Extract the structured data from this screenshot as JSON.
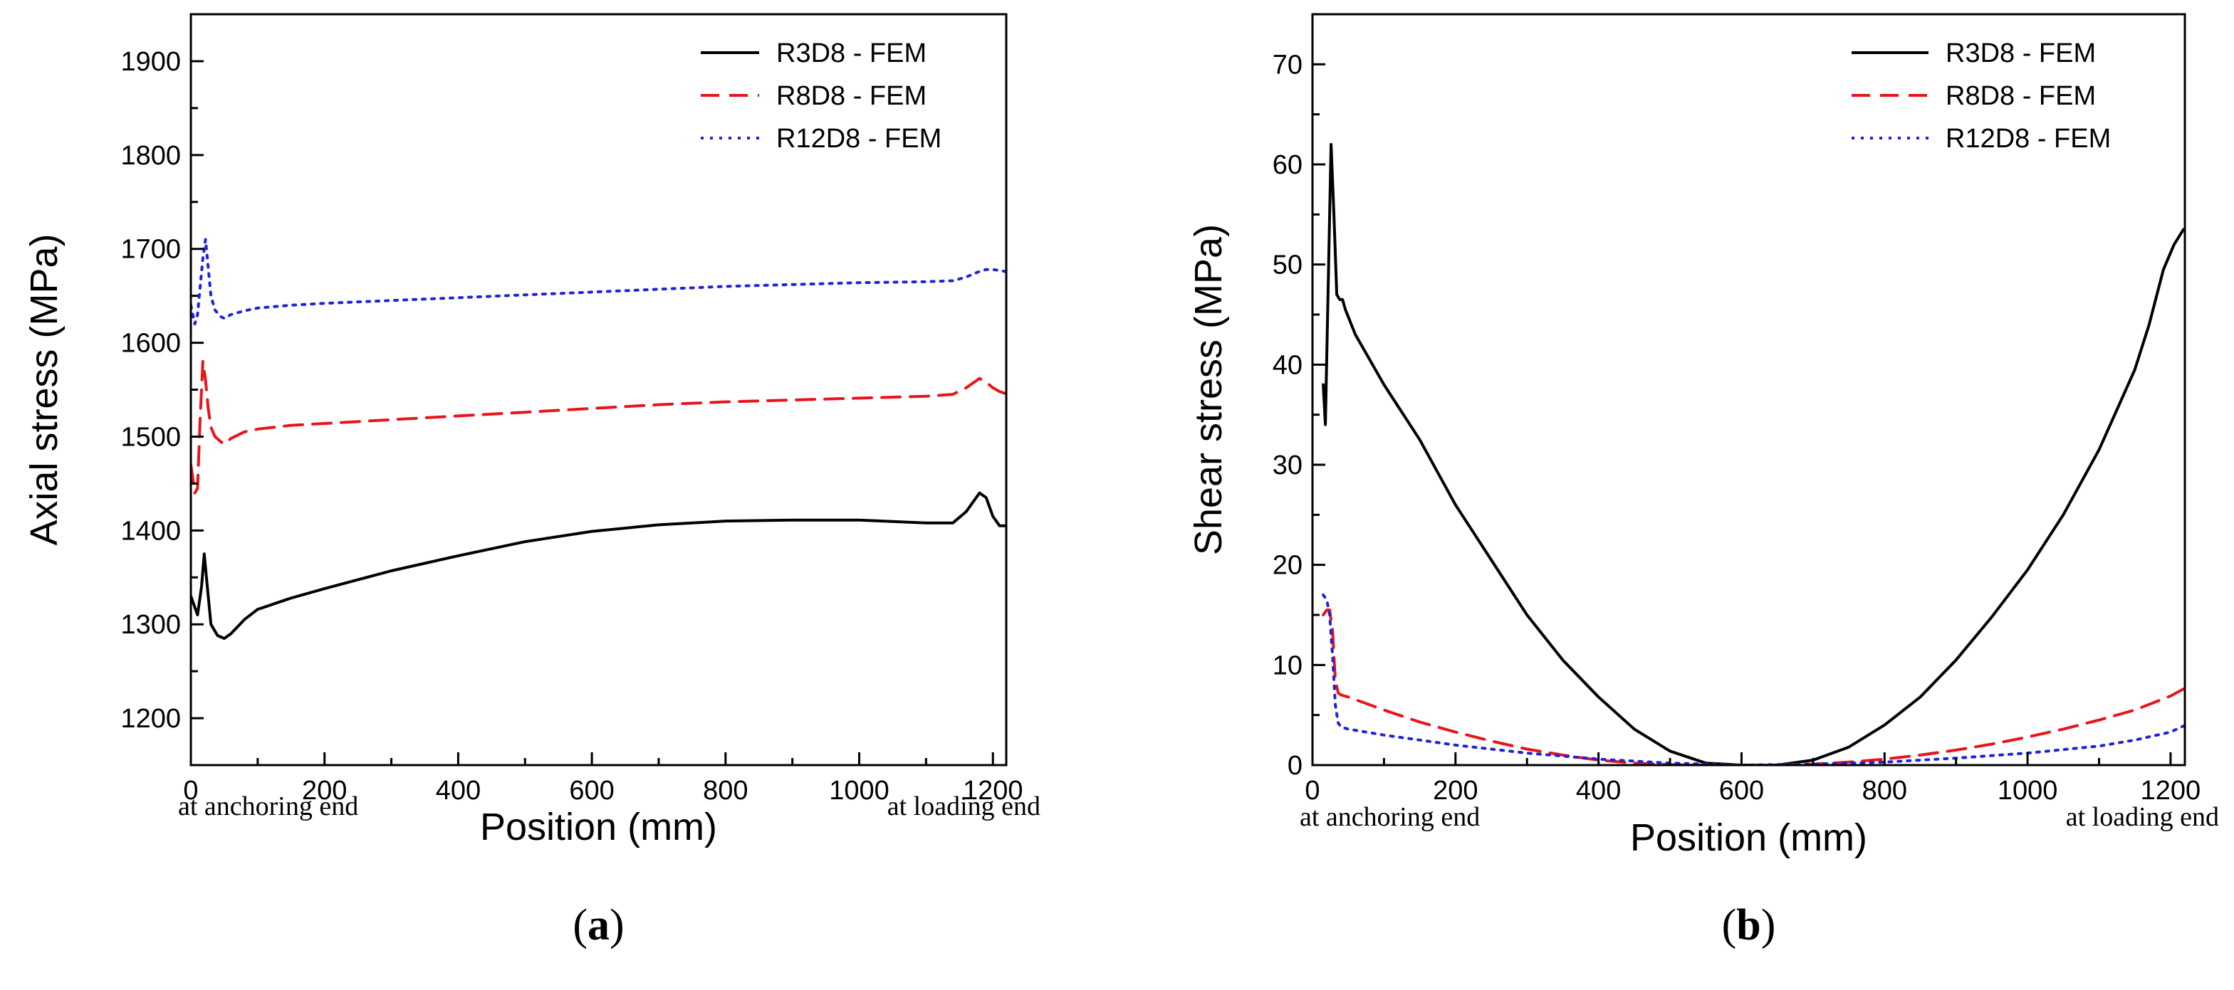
{
  "chart_data": [
    {
      "type": "line",
      "caption_open": "(",
      "caption_letter": "a",
      "caption_close": ")",
      "xlabel": "Position (mm)",
      "ylabel": "Axial stress (MPa)",
      "xlim": [
        0,
        1220
      ],
      "ylim": [
        1150,
        1950
      ],
      "xticks": [
        0,
        200,
        400,
        600,
        800,
        1000,
        1200
      ],
      "yticks": [
        1200,
        1300,
        1400,
        1500,
        1600,
        1700,
        1800,
        1900
      ],
      "annotations": {
        "left": "at anchoring end",
        "right": "at loading end"
      },
      "series": [
        {
          "name": "R3D8 - FEM",
          "color": "#000000",
          "dash": "solid",
          "x": [
            0,
            10,
            16,
            20,
            24,
            30,
            40,
            50,
            60,
            80,
            100,
            150,
            200,
            300,
            400,
            500,
            600,
            700,
            800,
            900,
            1000,
            1100,
            1140,
            1160,
            1180,
            1190,
            1200,
            1210,
            1218
          ],
          "y": [
            1330,
            1310,
            1340,
            1375,
            1345,
            1300,
            1288,
            1285,
            1290,
            1305,
            1316,
            1328,
            1338,
            1357,
            1373,
            1388,
            1399,
            1406,
            1410,
            1411,
            1411,
            1408,
            1408,
            1420,
            1440,
            1435,
            1415,
            1405,
            1405
          ]
        },
        {
          "name": "R8D8 - FEM",
          "color": "#e8141a",
          "dash": "dashed",
          "x": [
            0,
            6,
            10,
            14,
            18,
            22,
            26,
            30,
            36,
            44,
            50,
            60,
            80,
            100,
            150,
            200,
            300,
            400,
            500,
            600,
            700,
            800,
            900,
            1000,
            1100,
            1140,
            1160,
            1180,
            1190,
            1200,
            1210,
            1218
          ],
          "y": [
            1470,
            1440,
            1445,
            1520,
            1580,
            1560,
            1530,
            1510,
            1500,
            1495,
            1492,
            1498,
            1505,
            1508,
            1512,
            1514,
            1518,
            1522,
            1526,
            1530,
            1534,
            1537,
            1539,
            1541,
            1543,
            1545,
            1552,
            1562,
            1558,
            1552,
            1548,
            1546
          ]
        },
        {
          "name": "R12D8 - FEM",
          "color": "#2020e0",
          "dash": "dotted",
          "x": [
            0,
            6,
            10,
            14,
            18,
            22,
            26,
            30,
            36,
            44,
            50,
            60,
            80,
            100,
            150,
            200,
            300,
            400,
            500,
            600,
            700,
            800,
            900,
            1000,
            1100,
            1140,
            1160,
            1180,
            1190,
            1200,
            1210,
            1218
          ],
          "y": [
            1640,
            1620,
            1630,
            1660,
            1690,
            1710,
            1680,
            1650,
            1635,
            1628,
            1626,
            1630,
            1634,
            1637,
            1640,
            1642,
            1645,
            1648,
            1651,
            1654,
            1657,
            1660,
            1662,
            1664,
            1665,
            1666,
            1670,
            1676,
            1678,
            1678,
            1677,
            1676
          ]
        }
      ]
    },
    {
      "type": "line",
      "caption_open": "(",
      "caption_letter": "b",
      "caption_close": ")",
      "xlabel": "Position (mm)",
      "ylabel": "Shear stress (MPa)",
      "xlim": [
        0,
        1220
      ],
      "ylim": [
        0,
        75
      ],
      "xticks": [
        0,
        200,
        400,
        600,
        800,
        1000,
        1200
      ],
      "yticks": [
        0,
        10,
        20,
        30,
        40,
        50,
        60,
        70
      ],
      "annotations": {
        "left": "at anchoring end",
        "right": "at loading end"
      },
      "series": [
        {
          "name": "R3D8 - FEM",
          "color": "#000000",
          "dash": "solid",
          "x": [
            15,
            18,
            22,
            26,
            30,
            34,
            38,
            42,
            46,
            60,
            80,
            100,
            150,
            200,
            250,
            300,
            350,
            400,
            450,
            500,
            550,
            600,
            650,
            700,
            750,
            800,
            850,
            900,
            950,
            1000,
            1050,
            1100,
            1150,
            1170,
            1190,
            1205,
            1218
          ],
          "y": [
            38,
            34,
            48,
            62,
            55,
            47,
            46.5,
            46.5,
            45.5,
            43,
            40.5,
            38,
            32.5,
            26,
            20.5,
            15,
            10.5,
            6.8,
            3.6,
            1.4,
            0.2,
            0,
            0,
            0.5,
            1.8,
            4,
            6.8,
            10.5,
            14.8,
            19.5,
            25,
            31.5,
            39.5,
            44,
            49.5,
            52,
            53.5
          ]
        },
        {
          "name": "R8D8 - FEM",
          "color": "#e8141a",
          "dash": "dashed",
          "x": [
            15,
            20,
            24,
            28,
            32,
            36,
            40,
            50,
            100,
            150,
            200,
            250,
            300,
            350,
            400,
            450,
            500,
            550,
            600,
            650,
            700,
            750,
            800,
            850,
            900,
            950,
            1000,
            1050,
            1100,
            1150,
            1200,
            1218
          ],
          "y": [
            15,
            15.5,
            15.5,
            13.5,
            8.5,
            7.2,
            7,
            6.8,
            5.5,
            4.3,
            3.3,
            2.4,
            1.6,
            1,
            0.5,
            0.2,
            0.05,
            0,
            0,
            0,
            0.1,
            0.3,
            0.6,
            1,
            1.5,
            2.1,
            2.8,
            3.6,
            4.5,
            5.5,
            6.9,
            7.6
          ]
        },
        {
          "name": "R12D8 - FEM",
          "color": "#2020e0",
          "dash": "dotted",
          "x": [
            15,
            20,
            24,
            28,
            32,
            36,
            40,
            50,
            100,
            150,
            200,
            300,
            400,
            500,
            600,
            700,
            800,
            900,
            1000,
            1100,
            1150,
            1200,
            1218
          ],
          "y": [
            17,
            16.5,
            15,
            11,
            6,
            4.2,
            3.8,
            3.6,
            3,
            2.5,
            2,
            1.2,
            0.6,
            0.2,
            0,
            0.1,
            0.3,
            0.7,
            1.2,
            1.9,
            2.5,
            3.3,
            3.9
          ]
        }
      ]
    }
  ]
}
